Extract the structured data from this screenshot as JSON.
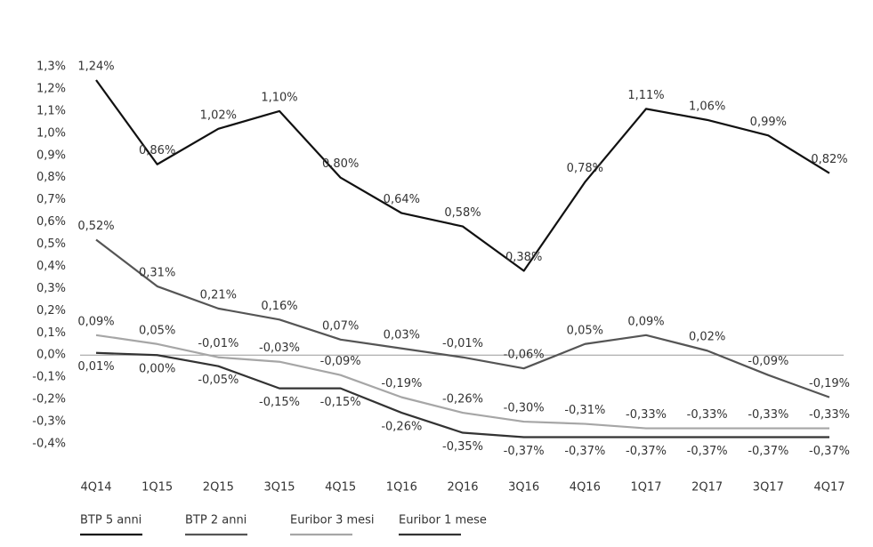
{
  "chart_data": {
    "type": "line",
    "categories": [
      "4Q14",
      "1Q15",
      "2Q15",
      "3Q15",
      "4Q15",
      "1Q16",
      "2Q16",
      "3Q16",
      "4Q16",
      "1Q17",
      "2Q17",
      "3Q17",
      "4Q17"
    ],
    "ylim": [
      -0.4,
      1.3
    ],
    "yticks": [
      {
        "value": -0.4,
        "label": "-0,4%"
      },
      {
        "value": -0.3,
        "label": "-0,3%"
      },
      {
        "value": -0.2,
        "label": "-0,2%"
      },
      {
        "value": -0.1,
        "label": "-0,1%"
      },
      {
        "value": 0,
        "label": "0,0%"
      },
      {
        "value": 0.1,
        "label": "0,1%"
      },
      {
        "value": 0.2,
        "label": "0,2%"
      },
      {
        "value": 0.3,
        "label": "0,3%"
      },
      {
        "value": 0.4,
        "label": "0,4%"
      },
      {
        "value": 0.5,
        "label": "0,5%"
      },
      {
        "value": 0.6,
        "label": "0,6%"
      },
      {
        "value": 0.7,
        "label": "0,7%"
      },
      {
        "value": 0.8,
        "label": "0,8%"
      },
      {
        "value": 0.9,
        "label": "0,9%"
      },
      {
        "value": 1.0,
        "label": "1,0%"
      },
      {
        "value": 1.1,
        "label": "1,1%"
      },
      {
        "value": 1.2,
        "label": "1,2%"
      },
      {
        "value": 1.3,
        "label": "1,3%"
      }
    ],
    "grid": false,
    "legend": "bottom-left",
    "series": [
      {
        "name": "BTP 5 anni",
        "color": "#111111",
        "label_position": "above",
        "values": [
          1.24,
          0.86,
          1.02,
          1.1,
          0.8,
          0.64,
          0.58,
          0.38,
          0.78,
          1.11,
          1.06,
          0.99,
          0.82
        ],
        "value_labels": [
          "1,24%",
          "0,86%",
          "1,02%",
          "1,10%",
          "0,80%",
          "0,64%",
          "0,58%",
          "0,38%",
          "0,78%",
          "1,11%",
          "1,06%",
          "0,99%",
          "0,82%"
        ]
      },
      {
        "name": "BTP 2 anni",
        "color": "#555555",
        "label_position": "above",
        "values": [
          0.52,
          0.31,
          0.21,
          0.16,
          0.07,
          0.03,
          -0.01,
          -0.06,
          0.05,
          0.09,
          0.02,
          -0.09,
          -0.19
        ],
        "value_labels": [
          "0,52%",
          "0,31%",
          "0,21%",
          "0,16%",
          "0,07%",
          "0,03%",
          "-0,01%",
          "-0,06%",
          "0,05%",
          "0,09%",
          "0,02%",
          "-0,09%",
          "-0,19%"
        ]
      },
      {
        "name": "Euribor 3 mesi",
        "color": "#a6a6a6",
        "label_position": "above",
        "values": [
          0.09,
          0.05,
          -0.01,
          -0.03,
          -0.09,
          -0.19,
          -0.26,
          -0.3,
          -0.31,
          -0.33,
          -0.33,
          -0.33,
          -0.33
        ],
        "value_labels": [
          "0,09%",
          "0,05%",
          "-0,01%",
          "-0,03%",
          "-0,09%",
          "-0,19%",
          "-0,26%",
          "-0,30%",
          "-0,31%",
          "-0,33%",
          "-0,33%",
          "-0,33%",
          "-0,33%"
        ]
      },
      {
        "name": "Euribor 1 mese",
        "color": "#333333",
        "label_position": "below",
        "values": [
          0.01,
          0.0,
          -0.05,
          -0.15,
          -0.15,
          -0.26,
          -0.35,
          -0.37,
          -0.37,
          -0.37,
          -0.37,
          -0.37,
          -0.37
        ],
        "value_labels": [
          "0,01%",
          "0,00%",
          "-0,05%",
          "-0,15%",
          "-0,15%",
          "-0,26%",
          "-0,35%",
          "-0,37%",
          "-0,37%",
          "-0,37%",
          "-0,37%",
          "-0,37%",
          "-0,37%"
        ]
      }
    ]
  }
}
